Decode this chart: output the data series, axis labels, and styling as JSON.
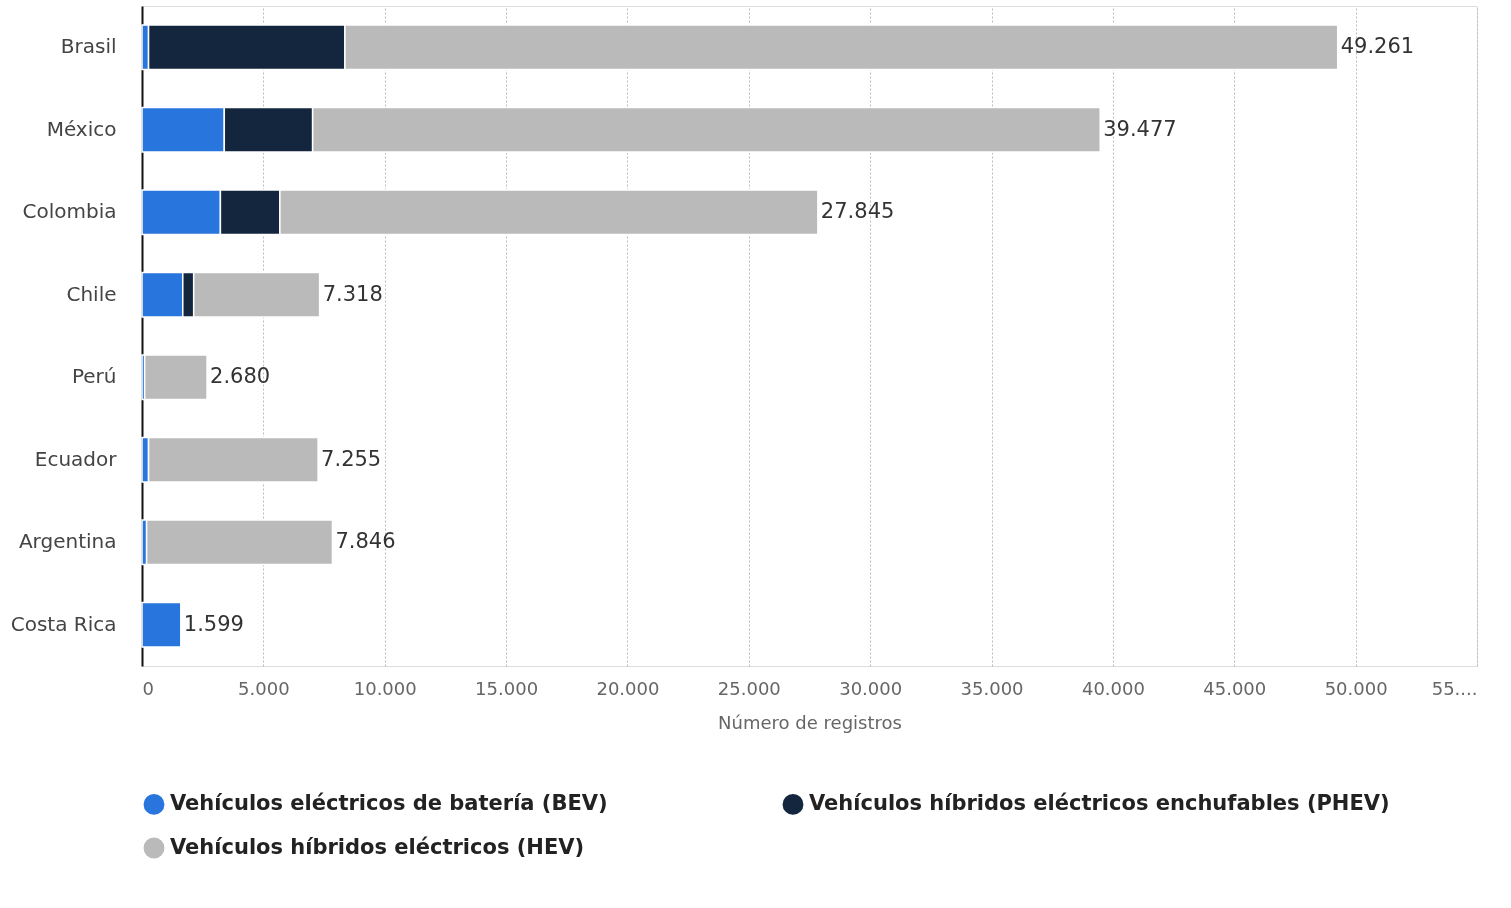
{
  "chart_data": {
    "type": "bar",
    "orientation": "horizontal",
    "stacked": true,
    "categories": [
      "Brasil",
      "México",
      "Colombia",
      "Chile",
      "Perú",
      "Ecuador",
      "Argentina",
      "Costa Rica"
    ],
    "series": [
      {
        "name": "Vehículos eléctricos de batería (BEV)",
        "color": "#2876dd",
        "values": [
          270,
          3390,
          3230,
          1680,
          110,
          270,
          190,
          1599
        ]
      },
      {
        "name": "Vehículos híbridos eléctricos enchufables (PHEV)",
        "color": "#14263d",
        "values": [
          8090,
          3640,
          2450,
          450,
          null,
          null,
          null,
          null
        ]
      },
      {
        "name": "Vehículos híbridos eléctricos (HEV)",
        "color": "#bababa",
        "values": [
          40901,
          32447,
          22165,
          5188,
          2570,
          6985,
          7656,
          null
        ]
      }
    ],
    "totals": [
      "49.261",
      "39.477",
      "27.845",
      "7.318",
      "2.680",
      "7.255",
      "7.846",
      "1.599"
    ],
    "xlabel": "Número de registros",
    "xlim": [
      0,
      55000
    ],
    "xticks": [
      {
        "value": 0,
        "label": "0"
      },
      {
        "value": 5000,
        "label": "5.000"
      },
      {
        "value": 10000,
        "label": "10.000"
      },
      {
        "value": 15000,
        "label": "15.000"
      },
      {
        "value": 20000,
        "label": "20.000"
      },
      {
        "value": 25000,
        "label": "25.000"
      },
      {
        "value": 30000,
        "label": "30.000"
      },
      {
        "value": 35000,
        "label": "35.000"
      },
      {
        "value": 40000,
        "label": "40.000"
      },
      {
        "value": 45000,
        "label": "45.000"
      },
      {
        "value": 50000,
        "label": "50.000"
      },
      {
        "value": 55000,
        "label": "55...."
      }
    ],
    "grid": "x",
    "legend": "bottom"
  }
}
